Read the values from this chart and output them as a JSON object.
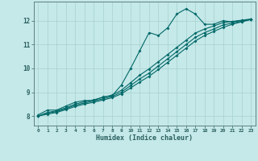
{
  "title": "",
  "xlabel": "Humidex (Indice chaleur)",
  "bg_color": "#c5e8e8",
  "grid_color": "#a8d0d0",
  "line_color": "#006868",
  "xlim": [
    -0.5,
    23.5
  ],
  "ylim": [
    7.6,
    12.8
  ],
  "yticks": [
    8,
    9,
    10,
    11,
    12
  ],
  "xticks": [
    0,
    1,
    2,
    3,
    4,
    5,
    6,
    7,
    8,
    9,
    10,
    11,
    12,
    13,
    14,
    15,
    16,
    17,
    18,
    19,
    20,
    21,
    22,
    23
  ],
  "line1_x": [
    0,
    1,
    2,
    3,
    4,
    5,
    6,
    7,
    8,
    9,
    10,
    11,
    12,
    13,
    14,
    15,
    16,
    17,
    18,
    19,
    20,
    21,
    22,
    23
  ],
  "line1_y": [
    8.05,
    8.25,
    8.25,
    8.42,
    8.58,
    8.65,
    8.65,
    8.8,
    8.85,
    9.3,
    10.0,
    10.75,
    11.5,
    11.38,
    11.7,
    12.28,
    12.5,
    12.28,
    11.85,
    11.85,
    12.0,
    11.95,
    12.0,
    12.05
  ],
  "line2_x": [
    0,
    1,
    2,
    3,
    4,
    5,
    6,
    7,
    8,
    9,
    10,
    11,
    12,
    13,
    14,
    15,
    16,
    17,
    18,
    19,
    20,
    21,
    22,
    23
  ],
  "line2_y": [
    8.0,
    8.15,
    8.22,
    8.35,
    8.5,
    8.6,
    8.68,
    8.78,
    8.88,
    9.08,
    9.4,
    9.72,
    9.98,
    10.28,
    10.58,
    10.88,
    11.18,
    11.48,
    11.65,
    11.78,
    11.92,
    11.97,
    12.02,
    12.07
  ],
  "line3_x": [
    0,
    1,
    2,
    3,
    4,
    5,
    6,
    7,
    8,
    9,
    10,
    11,
    12,
    13,
    14,
    15,
    16,
    17,
    18,
    19,
    20,
    21,
    22,
    23
  ],
  "line3_y": [
    8.0,
    8.12,
    8.19,
    8.31,
    8.45,
    8.55,
    8.63,
    8.72,
    8.82,
    9.0,
    9.28,
    9.56,
    9.8,
    10.1,
    10.4,
    10.7,
    11.0,
    11.3,
    11.5,
    11.65,
    11.82,
    11.9,
    11.97,
    12.05
  ],
  "line4_x": [
    0,
    1,
    2,
    3,
    4,
    5,
    6,
    7,
    8,
    9,
    10,
    11,
    12,
    13,
    14,
    15,
    16,
    17,
    18,
    19,
    20,
    21,
    22,
    23
  ],
  "line4_y": [
    8.0,
    8.08,
    8.15,
    8.27,
    8.4,
    8.5,
    8.58,
    8.67,
    8.77,
    8.93,
    9.18,
    9.43,
    9.67,
    9.95,
    10.25,
    10.55,
    10.85,
    11.15,
    11.38,
    11.55,
    11.72,
    11.85,
    11.95,
    12.05
  ]
}
